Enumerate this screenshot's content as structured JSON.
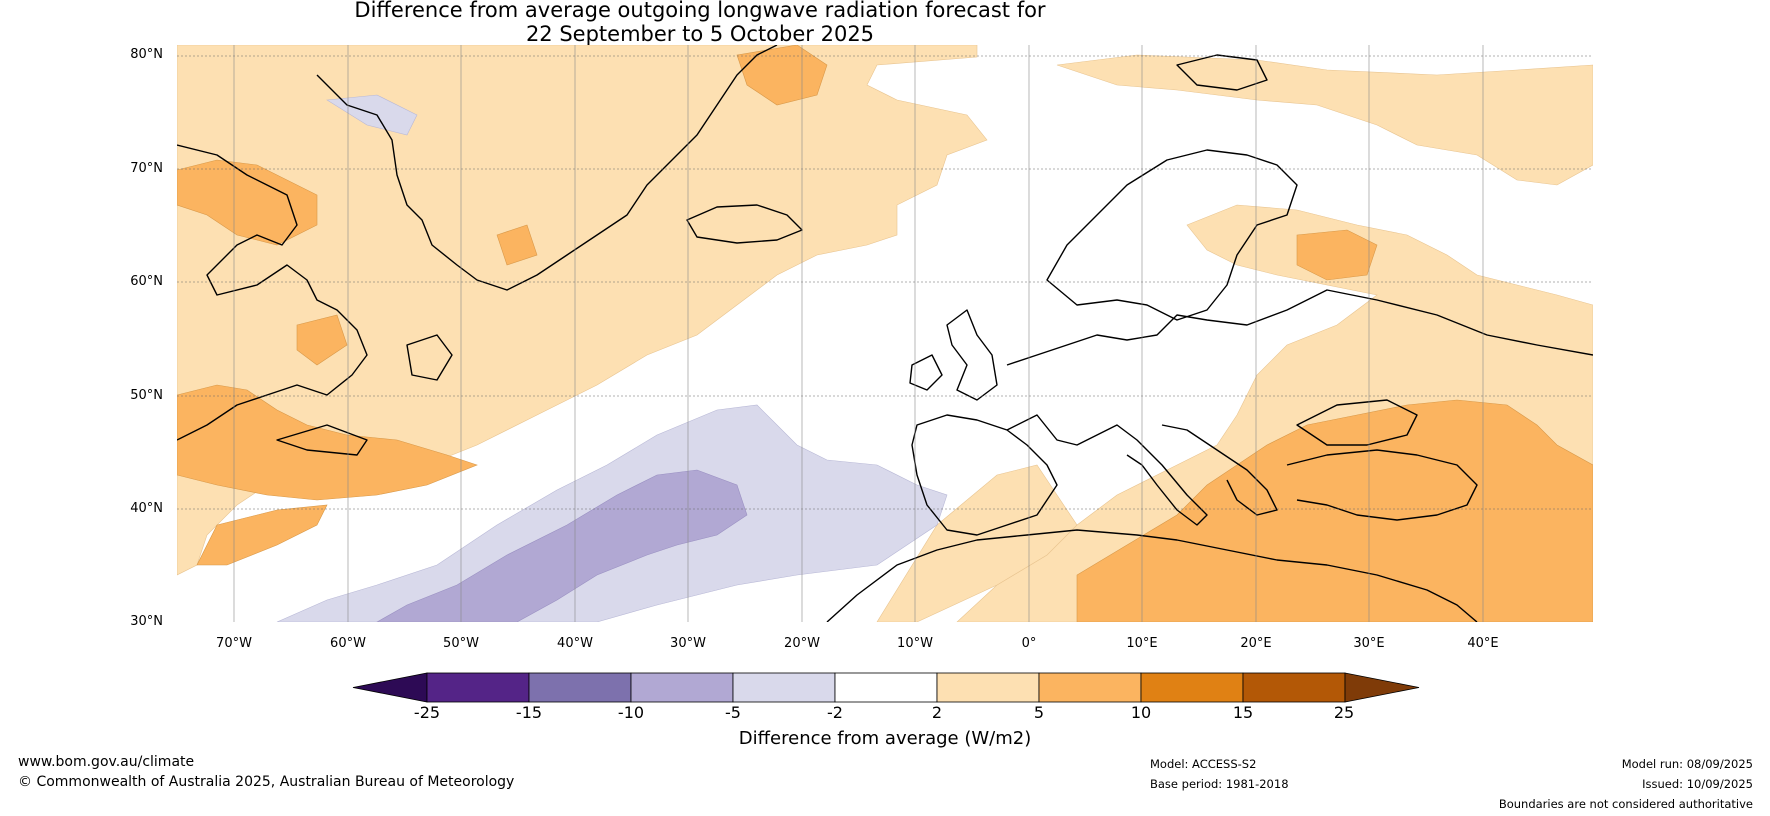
{
  "title": {
    "line1": "Difference from average outgoing longwave radiation forecast for",
    "line2": "22 September to 5 October 2025"
  },
  "axes": {
    "lat_labels": [
      "80°N",
      "70°N",
      "60°N",
      "50°N",
      "40°N",
      "30°N"
    ],
    "lon_labels": [
      "70°W",
      "60°W",
      "50°W",
      "40°W",
      "30°W",
      "20°W",
      "10°W",
      "0°",
      "10°E",
      "20°E",
      "30°E",
      "40°E"
    ]
  },
  "map": {
    "extent_lon": [
      -75,
      50
    ],
    "extent_lat": [
      30,
      81
    ],
    "regions": [
      "Greenland",
      "Iceland",
      "Labrador",
      "Newfoundland",
      "Canada",
      "Scandinavia",
      "British Isles",
      "Iberia",
      "North Africa",
      "Mediterranean Sea",
      "Black Sea",
      "Eastern Europe",
      "Middle East"
    ]
  },
  "colorbar": {
    "label": "Difference from average (W/m2)",
    "ticks": [
      "-25",
      "-15",
      "-10",
      "-5",
      "-2",
      "2",
      "5",
      "10",
      "15",
      "25"
    ],
    "colors": [
      "#2d0a55",
      "#542487",
      "#7d71ad",
      "#b1a8d3",
      "#d9d9eb",
      "#ffffff",
      "#fde0b2",
      "#fbb460",
      "#e08114",
      "#b35806",
      "#7f3b08"
    ]
  },
  "footer": {
    "website": "www.bom.gov.au/climate",
    "copyright": "© Commonwealth of Australia 2025, Australian Bureau of Meteorology",
    "model": "Model: ACCESS-S2",
    "base_period": "Base period: 1981-2018",
    "model_run": "Model run: 08/09/2025",
    "issued": "Issued: 10/09/2025",
    "disclaimer": "Boundaries are not considered authoritative"
  }
}
